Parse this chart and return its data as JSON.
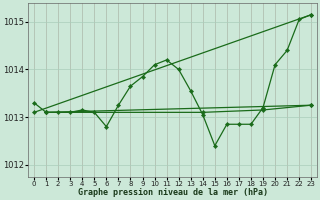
{
  "title": "Graphe pression niveau de la mer (hPa)",
  "background_color": "#cce8d8",
  "grid_color": "#aacebb",
  "line_color": "#1a6b1a",
  "xlim": [
    -0.5,
    23.5
  ],
  "ylim": [
    1011.75,
    1015.4
  ],
  "yticks": [
    1012,
    1013,
    1014,
    1015
  ],
  "xticks": [
    0,
    1,
    2,
    3,
    4,
    5,
    6,
    7,
    8,
    9,
    10,
    11,
    12,
    13,
    14,
    15,
    16,
    17,
    18,
    19,
    20,
    21,
    22,
    23
  ],
  "series": [
    {
      "x": [
        0,
        1,
        2,
        3,
        4,
        5,
        6,
        7,
        8,
        9,
        10,
        11,
        12,
        13,
        14,
        15,
        16,
        17,
        18,
        19,
        20,
        21,
        22,
        23
      ],
      "y": [
        1013.3,
        1013.1,
        1013.1,
        1013.1,
        1013.15,
        1013.1,
        1012.8,
        1013.25,
        1013.65,
        1013.85,
        1014.1,
        1014.2,
        1014.0,
        1013.55,
        1013.05,
        1012.4,
        1012.85,
        1012.85,
        1012.85,
        1013.2,
        1014.1,
        1014.4,
        1015.05,
        1015.15
      ]
    },
    {
      "x": [
        0,
        23
      ],
      "y": [
        1013.1,
        1015.15
      ]
    },
    {
      "x": [
        1,
        23
      ],
      "y": [
        1013.1,
        1013.25
      ]
    },
    {
      "x": [
        1,
        14,
        19,
        23
      ],
      "y": [
        1013.1,
        1013.1,
        1013.15,
        1013.25
      ]
    }
  ]
}
